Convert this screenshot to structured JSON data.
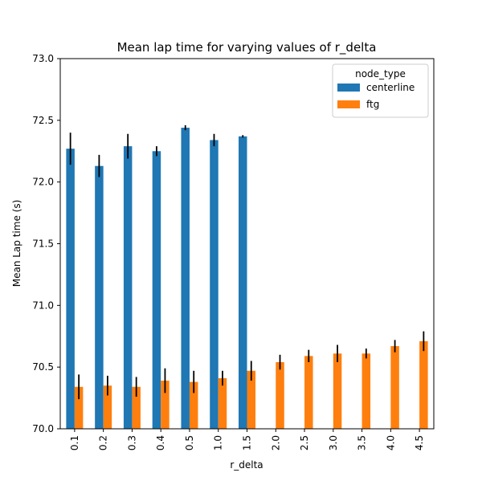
{
  "chart_data": {
    "type": "bar",
    "title": "Mean lap time for varying values of r_delta",
    "xlabel": "r_delta",
    "ylabel": "Mean Lap time (s)",
    "ylim": [
      70.0,
      73.0
    ],
    "yticks": [
      70.0,
      70.5,
      71.0,
      71.5,
      72.0,
      72.5,
      73.0
    ],
    "ytick_labels": [
      "70.0",
      "70.5",
      "71.0",
      "71.5",
      "72.0",
      "72.5",
      "73.0"
    ],
    "categories": [
      "0.1",
      "0.2",
      "0.3",
      "0.4",
      "0.5",
      "1.0",
      "1.5",
      "2.0",
      "2.5",
      "3.0",
      "3.5",
      "4.0",
      "4.5"
    ],
    "legend_title": "node_type",
    "legend_position": "top-right",
    "grid": false,
    "series": [
      {
        "name": "centerline",
        "color": "#1f77b4",
        "values": [
          72.27,
          72.13,
          72.29,
          72.25,
          72.44,
          72.34,
          72.37,
          null,
          null,
          null,
          null,
          null,
          null
        ],
        "errors": [
          0.13,
          0.09,
          0.1,
          0.04,
          0.02,
          0.05,
          0.01,
          null,
          null,
          null,
          null,
          null,
          null
        ]
      },
      {
        "name": "ftg",
        "color": "#ff7f0e",
        "values": [
          70.34,
          70.35,
          70.34,
          70.39,
          70.38,
          70.41,
          70.47,
          70.54,
          70.59,
          70.61,
          70.61,
          70.67,
          70.71
        ],
        "errors": [
          0.1,
          0.08,
          0.08,
          0.1,
          0.09,
          0.06,
          0.08,
          0.06,
          0.05,
          0.07,
          0.04,
          0.05,
          0.08
        ]
      }
    ]
  }
}
